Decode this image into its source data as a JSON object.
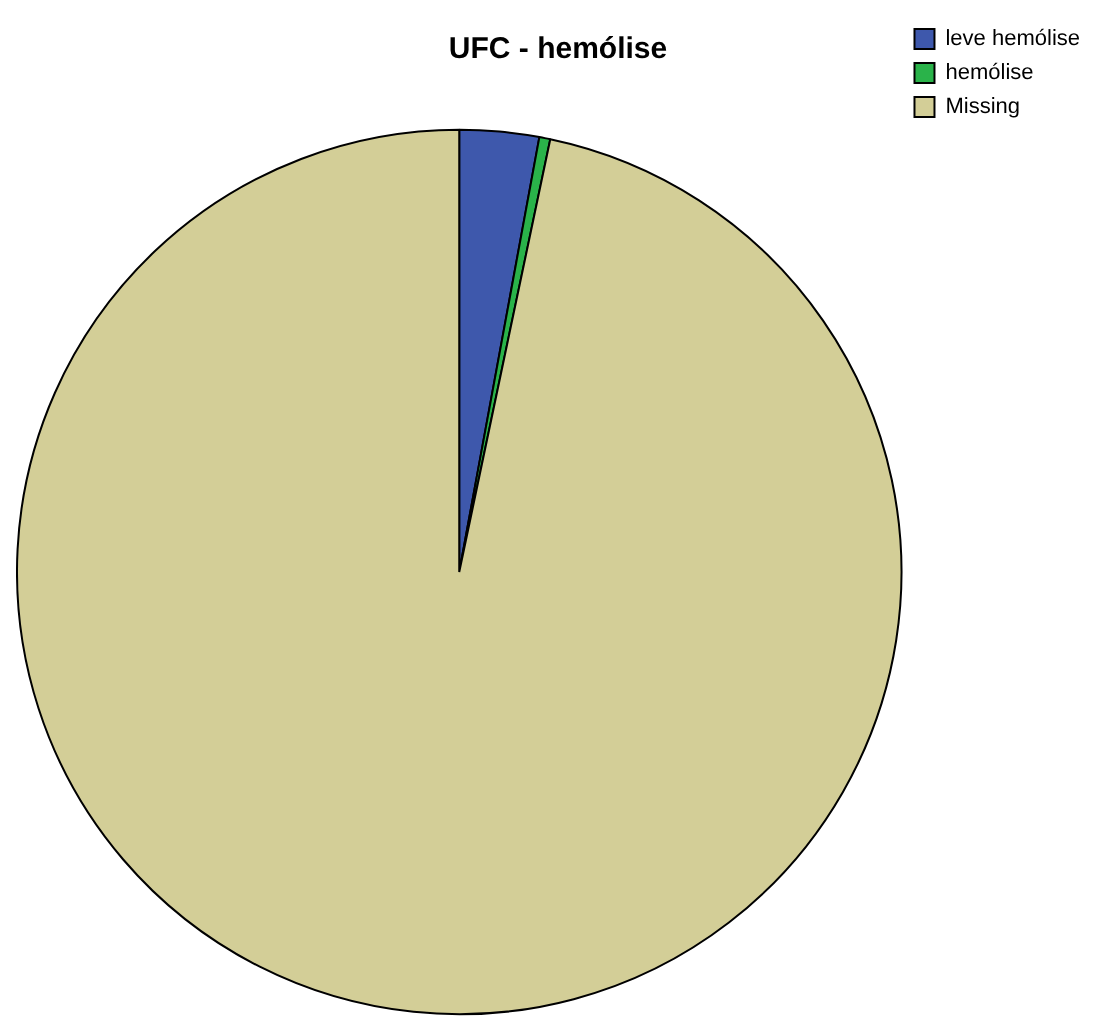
{
  "chart_data": {
    "type": "pie",
    "title": "UFC - hemólise",
    "categories": [
      "leve hemólise",
      "hemólise",
      "Missing"
    ],
    "values": [
      2.9,
      0.4,
      96.7
    ],
    "colors": [
      "#3e58ac",
      "#2ab34a",
      "#d3ce97"
    ],
    "legend": "top right"
  }
}
